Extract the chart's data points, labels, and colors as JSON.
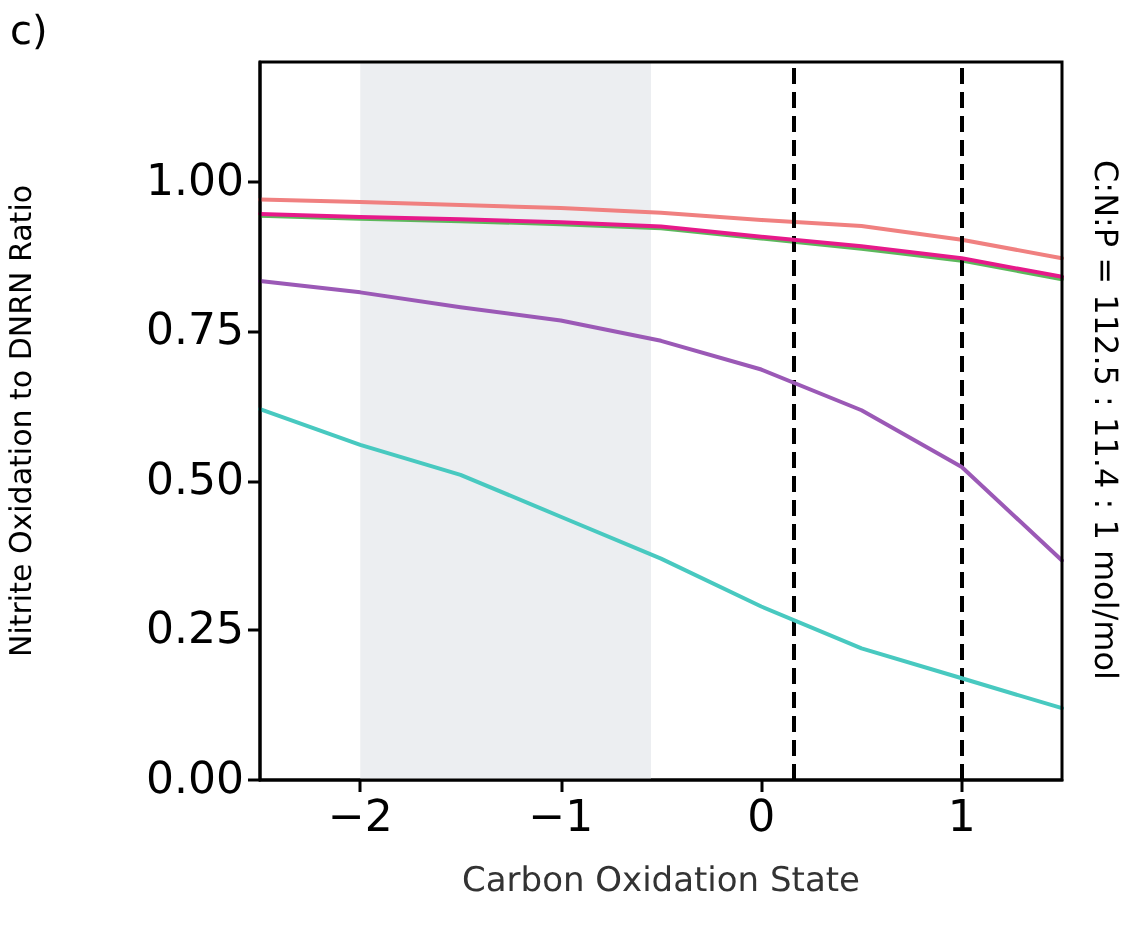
{
  "chart_data": {
    "type": "line",
    "title": "c)",
    "xlabel": "Carbon Oxidation State",
    "ylabel": "Nitrite Oxidation to DNRN Ratio",
    "annotations": [
      "C:N:P = 112.5 : 11.4 : 1 mol/mol"
    ],
    "x": [
      -2.5,
      -2,
      -1.5,
      -1,
      -0.5,
      0,
      0.5,
      1,
      1.5
    ],
    "series": [
      {
        "color": "#f08080",
        "values": [
          0.97,
          0.966,
          0.961,
          0.956,
          0.948,
          0.936,
          0.926,
          0.903,
          0.872
        ]
      },
      {
        "color": "#5cb85c",
        "values": [
          0.943,
          0.938,
          0.934,
          0.929,
          0.922,
          0.905,
          0.888,
          0.868,
          0.837
        ]
      },
      {
        "color": "#e6198a",
        "values": [
          0.946,
          0.941,
          0.937,
          0.932,
          0.925,
          0.908,
          0.892,
          0.872,
          0.841
        ]
      },
      {
        "color": "#9b59b6",
        "values": [
          0.834,
          0.815,
          0.79,
          0.768,
          0.734,
          0.686,
          0.618,
          0.523,
          0.367
        ]
      },
      {
        "color": "#48c9c0",
        "values": [
          0.62,
          0.56,
          0.51,
          0.44,
          0.37,
          0.29,
          0.22,
          0.17,
          0.12
        ]
      }
    ],
    "xlim": [
      -2.5,
      1.5
    ],
    "xticks": [
      -2,
      -1,
      0,
      1
    ],
    "ylim": [
      0,
      1.2
    ],
    "yticks": [
      {
        "value": 0,
        "label": "0.00"
      },
      0.25,
      {
        "value": 0.5,
        "label": "0.50"
      },
      0.75,
      {
        "value": 1,
        "label": "1.00"
      }
    ],
    "ref_lines": [
      {
        "axis": "x",
        "value": 0.16,
        "color": "#000000",
        "line_style": "dashed"
      },
      {
        "axis": "x",
        "value": 1,
        "color": "#000000",
        "line_style": "dashed"
      }
    ],
    "bands": [
      {
        "axis": "x",
        "from": -2,
        "to": -0.55,
        "color": "#eceef1"
      }
    ],
    "grid": false,
    "marker": "none",
    "line_style": "solid"
  }
}
